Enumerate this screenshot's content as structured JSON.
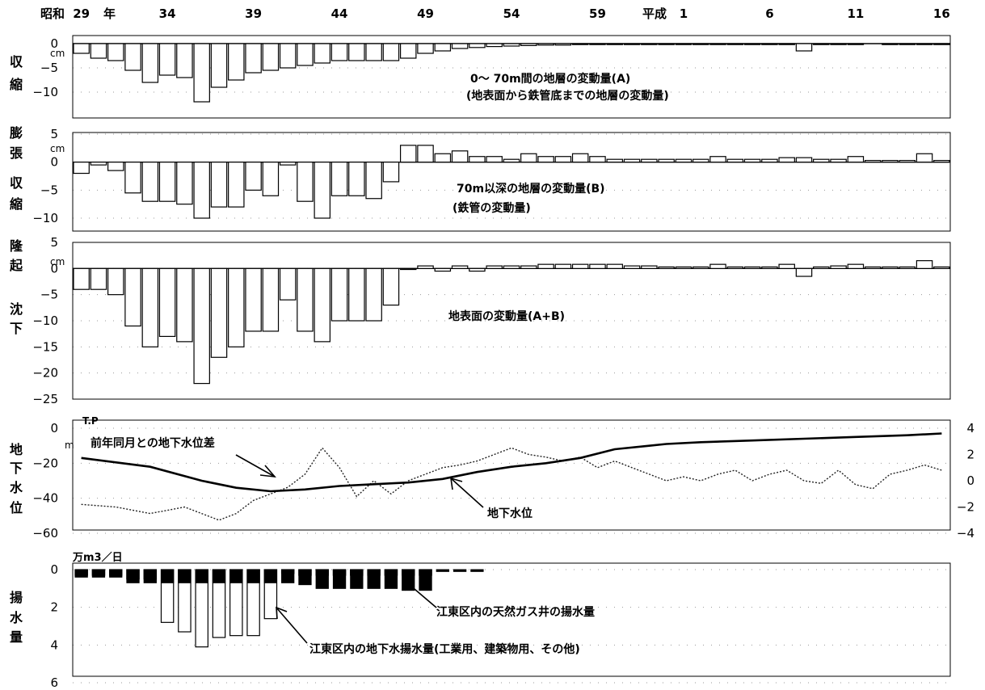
{
  "year_axis": {
    "era_showa": "昭和",
    "era_heisei": "平成",
    "nen": "年",
    "labels": [
      "29",
      "34",
      "39",
      "44",
      "49",
      "54",
      "59",
      "1",
      "6",
      "11",
      "16"
    ]
  },
  "panels": {
    "p1": {
      "side_label": [
        "収",
        "縮"
      ],
      "unit": "cm",
      "note_line1": "0～ 70m間の地層の変動量(A)",
      "note_line2": "(地表面から鉄管底までの地層の変動量)"
    },
    "p2": {
      "side_label_top": [
        "膨",
        "張"
      ],
      "side_label_bottom": [
        "収",
        "縮"
      ],
      "unit": "cm",
      "note_line1": "70m以深の地層の変動量(B)",
      "note_line2": "(鉄管の変動量)"
    },
    "p3": {
      "side_label_top": [
        "隆",
        "起"
      ],
      "side_label_bottom": [
        "沈",
        "下"
      ],
      "unit": "cm",
      "note_line1": "地表面の変動量(A+B)"
    },
    "p4": {
      "side_label": [
        "地",
        "下",
        "水",
        "位"
      ],
      "unit": "m",
      "unit_tp": "T.P",
      "label_diff": "前年同月との地下水位差",
      "label_level": "地下水位"
    },
    "p5": {
      "side_label": [
        "揚",
        "水",
        "量"
      ],
      "unit": "万m3／日",
      "label_gas": "江東区内の天然ガス井の揚水量",
      "label_ground": "江東区内の地下水揚水量(工業用、建築物用、その他)"
    }
  },
  "chart_data": [
    {
      "type": "bar",
      "id": "layer_0_70m",
      "x_years": [
        29,
        30,
        31,
        32,
        33,
        34,
        35,
        36,
        37,
        38,
        39,
        40,
        41,
        42,
        43,
        44,
        45,
        46,
        47,
        48,
        49,
        50,
        51,
        52,
        53,
        54,
        55,
        56,
        57,
        58,
        59,
        60,
        61,
        62,
        63,
        1,
        2,
        3,
        4,
        5,
        6,
        7,
        8,
        9,
        10,
        11,
        12,
        13,
        14,
        15,
        16
      ],
      "values": [
        -2,
        -3,
        -3.5,
        -5.5,
        -8,
        -6.5,
        -7,
        -12,
        -9,
        -7.5,
        -6,
        -5.5,
        -5,
        -4.5,
        -4,
        -3.5,
        -3.5,
        -3.5,
        -3.5,
        -3,
        -2,
        -1.5,
        -1,
        -0.8,
        -0.6,
        -0.5,
        -0.4,
        -0.3,
        -0.3,
        -0.2,
        -0.2,
        -0.1,
        -0.1,
        -0.1,
        -0.1,
        -0.1,
        -0.1,
        -0.1,
        -0.1,
        -0.1,
        -0.1,
        -0.1,
        -1.5,
        -0.1,
        -0.1,
        -0.1,
        null,
        -0.1,
        -0.1,
        -0.1,
        -0.1
      ],
      "ylim": [
        -12,
        0
      ],
      "yticks": [
        0,
        -5,
        -10
      ]
    },
    {
      "type": "bar",
      "id": "layer_below_70m",
      "x_years": [
        29,
        30,
        31,
        32,
        33,
        34,
        35,
        36,
        37,
        38,
        39,
        40,
        41,
        42,
        43,
        44,
        45,
        46,
        47,
        48,
        49,
        50,
        51,
        52,
        53,
        54,
        55,
        56,
        57,
        58,
        59,
        60,
        61,
        62,
        63,
        1,
        2,
        3,
        4,
        5,
        6,
        7,
        8,
        9,
        10,
        11,
        12,
        13,
        14,
        15,
        16
      ],
      "values": [
        -2,
        -0.5,
        -1.5,
        -5.5,
        -7,
        -7,
        -7.5,
        -10,
        -8,
        -8,
        -5,
        -6,
        -0.5,
        -7,
        -10,
        -6,
        -6,
        -6.5,
        -3.5,
        3,
        3,
        1.5,
        2,
        1,
        1,
        0.5,
        1.5,
        1,
        1,
        1.5,
        1,
        0.5,
        0.5,
        0.5,
        0.5,
        0.5,
        0.5,
        1,
        0.5,
        0.5,
        0.5,
        0.8,
        0.8,
        0.5,
        0.5,
        1,
        0.3,
        0.3,
        0.3,
        1.5,
        0.3
      ],
      "ylim": [
        -10,
        5
      ],
      "yticks": [
        5,
        0,
        -5,
        -10
      ]
    },
    {
      "type": "bar",
      "id": "ground_surface_total",
      "x_years": [
        29,
        30,
        31,
        32,
        33,
        34,
        35,
        36,
        37,
        38,
        39,
        40,
        41,
        42,
        43,
        44,
        45,
        46,
        47,
        48,
        49,
        50,
        51,
        52,
        53,
        54,
        55,
        56,
        57,
        58,
        59,
        60,
        61,
        62,
        63,
        1,
        2,
        3,
        4,
        5,
        6,
        7,
        8,
        9,
        10,
        11,
        12,
        13,
        14,
        15,
        16
      ],
      "values": [
        -4,
        -4,
        -5,
        -11,
        -15,
        -13,
        -14,
        -22,
        -17,
        -15,
        -12,
        -12,
        -6,
        -12,
        -14,
        -10,
        -10,
        -10,
        -7,
        0,
        0.5,
        -0.5,
        0.5,
        -0.5,
        0.5,
        0.5,
        0.5,
        0.8,
        0.8,
        0.8,
        0.8,
        0.8,
        0.5,
        0.5,
        0.3,
        0.3,
        0.3,
        0.8,
        0.3,
        0.3,
        0.3,
        0.8,
        -1.5,
        0.3,
        0.5,
        0.8,
        0.3,
        0.3,
        0.3,
        1.5,
        0.3
      ],
      "ylim": [
        -25,
        5
      ],
      "yticks": [
        5,
        0,
        -5,
        -10,
        -15,
        -20,
        -25
      ]
    },
    {
      "type": "line",
      "id": "groundwater",
      "x_range_years": [
        29,
        16
      ],
      "left_axis": {
        "ylim": [
          -60,
          0
        ],
        "yticks": [
          0,
          -20,
          -40,
          -60
        ]
      },
      "right_axis": {
        "ylim": [
          -4,
          4
        ],
        "yticks": [
          4,
          2,
          0,
          -2,
          -4
        ]
      },
      "series": [
        {
          "name": "地下水位",
          "axis": "left",
          "style": "solid",
          "points": [
            [
              29,
              -17
            ],
            [
              33,
              -22
            ],
            [
              36,
              -30
            ],
            [
              38,
              -34
            ],
            [
              40,
              -36
            ],
            [
              42,
              -35
            ],
            [
              44,
              -33
            ],
            [
              46,
              -32
            ],
            [
              48,
              -31
            ],
            [
              50,
              -29
            ],
            [
              52,
              -25
            ],
            [
              54,
              -22
            ],
            [
              56,
              -20
            ],
            [
              58,
              -17
            ],
            [
              60,
              -12
            ],
            [
              62,
              -10
            ],
            [
              63,
              -9
            ],
            [
              2,
              -8
            ],
            [
              5,
              -7
            ],
            [
              8,
              -6
            ],
            [
              11,
              -5
            ],
            [
              14,
              -4
            ],
            [
              16,
              -3
            ]
          ]
        },
        {
          "name": "前年同月との地下水位差",
          "axis": "right",
          "style": "dotted",
          "points": [
            [
              29,
              -1.8
            ],
            [
              31,
              -2
            ],
            [
              33,
              -2.5
            ],
            [
              35,
              -2
            ],
            [
              37,
              -3
            ],
            [
              38,
              -2.5
            ],
            [
              39,
              -1.5
            ],
            [
              40,
              -1
            ],
            [
              41,
              -0.5
            ],
            [
              42,
              0.5
            ],
            [
              43,
              2.5
            ],
            [
              44,
              1
            ],
            [
              45,
              -1.2
            ],
            [
              46,
              0
            ],
            [
              47,
              -1
            ],
            [
              48,
              0
            ],
            [
              50,
              1
            ],
            [
              51,
              1.2
            ],
            [
              52,
              1.5
            ],
            [
              53,
              2
            ],
            [
              54,
              2.5
            ],
            [
              55,
              2
            ],
            [
              56,
              1.8
            ],
            [
              57,
              1.5
            ],
            [
              58,
              1.8
            ],
            [
              59,
              1
            ],
            [
              60,
              1.5
            ],
            [
              61,
              1
            ],
            [
              62,
              0.5
            ],
            [
              63,
              0
            ],
            [
              1,
              0.3
            ],
            [
              2,
              0
            ],
            [
              3,
              0.5
            ],
            [
              4,
              0.8
            ],
            [
              5,
              0
            ],
            [
              6,
              0.5
            ],
            [
              7,
              0.8
            ],
            [
              8,
              0
            ],
            [
              9,
              -0.2
            ],
            [
              10,
              0.8
            ],
            [
              11,
              -0.3
            ],
            [
              12,
              -0.6
            ],
            [
              13,
              0.5
            ],
            [
              14,
              0.8
            ],
            [
              15,
              1.2
            ],
            [
              16,
              0.8
            ]
          ]
        }
      ]
    },
    {
      "type": "bar",
      "id": "pumping",
      "x_years": [
        29,
        30,
        31,
        32,
        33,
        34,
        35,
        36,
        37,
        38,
        39,
        40,
        41,
        42,
        43,
        44,
        45,
        46,
        47,
        48,
        49,
        50,
        51,
        52,
        53,
        54,
        55,
        56,
        57,
        58,
        59,
        60,
        61,
        62,
        63,
        1,
        2,
        3,
        4,
        5,
        6,
        7,
        8,
        9,
        10,
        11,
        12,
        13,
        14,
        15,
        16
      ],
      "ylim": [
        0,
        6
      ],
      "yticks": [
        0,
        2,
        4,
        6
      ],
      "series": [
        {
          "name": "江東区内の天然ガス井の揚水量",
          "style": "black",
          "values": [
            0.4,
            0.4,
            0.4,
            0.7,
            0.7,
            0.7,
            0.7,
            0.7,
            0.7,
            0.7,
            0.7,
            0.7,
            0.7,
            0.8,
            1,
            1,
            1,
            1,
            1,
            1.1,
            1.1,
            0.1,
            0.1,
            0.1,
            null,
            null,
            null,
            null,
            null,
            null,
            null,
            null,
            null,
            null,
            null,
            null,
            null,
            null,
            null,
            null,
            null,
            null,
            null,
            null,
            null,
            null,
            null,
            null,
            null,
            null,
            null
          ]
        },
        {
          "name": "江東区内の地下水揚水量(工業用、建築物用、その他)",
          "style": "white",
          "values": [
            0.3,
            0.3,
            0.3,
            0.5,
            0.5,
            2.8,
            3.3,
            4.1,
            3.6,
            3.5,
            3.5,
            2.6,
            0.2,
            0.3,
            0.3,
            0.3,
            0.3,
            0.3,
            0.3,
            0.3,
            0.3,
            null,
            null,
            null,
            null,
            null,
            null,
            null,
            null,
            null,
            null,
            null,
            null,
            null,
            null,
            null,
            null,
            null,
            null,
            null,
            null,
            null,
            null,
            null,
            null,
            null,
            null,
            null,
            null,
            null,
            null
          ]
        }
      ]
    }
  ]
}
